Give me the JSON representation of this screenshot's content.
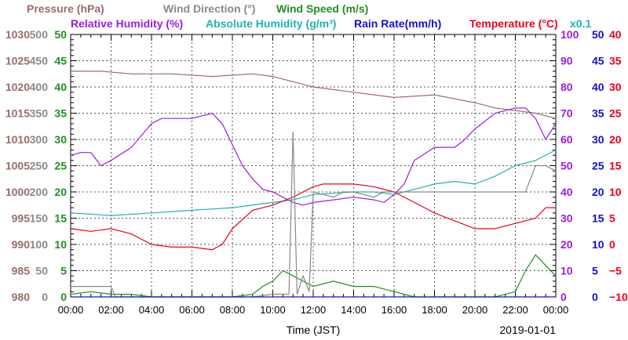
{
  "chart_data": {
    "type": "line",
    "xlabel": "Time (JST)",
    "date_label": "2019-01-01",
    "x_ticks": [
      "00:00",
      "02:00",
      "04:00",
      "06:00",
      "08:00",
      "10:00",
      "12:00",
      "14:00",
      "16:00",
      "18:00",
      "20:00",
      "22:00",
      "00:00"
    ],
    "x_range_hours": [
      0,
      24
    ],
    "grid": true,
    "legend": {
      "row1": [
        {
          "text": "Pressure (hPa)",
          "color": "#9c6b6b"
        },
        {
          "text": "Wind Direction (°)",
          "color": "#8a8a8a"
        },
        {
          "text": "Wind Speed (m/s)",
          "color": "#1f8f1f"
        }
      ],
      "row2": [
        {
          "text": "Relative Humidity (%)",
          "color": "#9a1ee0"
        },
        {
          "text": "Absolute Humidity (g/m³)",
          "color": "#1fb3b3"
        },
        {
          "text": "Rain Rate(mm/h)",
          "color": "#1111cc"
        },
        {
          "text": "Temperature (°C)",
          "color": "#ee0022"
        }
      ],
      "ah_multiplier": "x0.1"
    },
    "axes": {
      "pressure": {
        "min": 980,
        "max": 1030,
        "ticks": [
          "1030",
          "1025",
          "1020",
          "1015",
          "1010",
          "1005",
          "1000",
          "995",
          "990",
          "985",
          "980"
        ],
        "color": "#9c6b6b"
      },
      "wind_direction": {
        "min": 0,
        "max": 500,
        "ticks": [
          "500",
          "450",
          "400",
          "350",
          "300",
          "250",
          "200",
          "150",
          "100",
          "50",
          "0"
        ],
        "color": "#8a8a8a"
      },
      "wind_speed": {
        "min": 0,
        "max": 50,
        "ticks": [
          "50",
          "45",
          "40",
          "35",
          "30",
          "25",
          "20",
          "15",
          "10",
          "5",
          "0"
        ],
        "color": "#1f8f1f"
      },
      "humidity": {
        "min": 0,
        "max": 100,
        "ticks": [
          "100",
          "90",
          "80",
          "70",
          "60",
          "50",
          "40",
          "30",
          "20",
          "10",
          "0"
        ],
        "color": "#9a1ee0"
      },
      "rain_rate": {
        "min": 0,
        "max": 50,
        "ticks": [
          "50",
          "45",
          "40",
          "35",
          "30",
          "25",
          "20",
          "15",
          "10",
          "5",
          "0"
        ],
        "color": "#1111cc"
      },
      "temperature": {
        "min": -10,
        "max": 40,
        "ticks": [
          "40",
          "35",
          "30",
          "25",
          "20",
          "15",
          "10",
          "5",
          "0",
          "−5",
          "−10"
        ],
        "color": "#ee0022"
      }
    },
    "series": [
      {
        "name": "Pressure (hPa)",
        "axis": "pressure",
        "color": "#9c6b6b",
        "x": [
          0,
          1.5,
          3,
          5,
          7,
          9,
          10,
          12,
          14,
          16,
          18,
          20,
          21,
          22,
          23,
          24
        ],
        "y": [
          1023,
          1023,
          1022.5,
          1022.5,
          1022,
          1022.5,
          1022,
          1020,
          1019,
          1018,
          1018.5,
          1017,
          1016,
          1015.5,
          1015,
          1014
        ]
      },
      {
        "name": "Relative Humidity (%)",
        "axis": "humidity",
        "color": "#9a1ee0",
        "x": [
          0,
          0.5,
          1,
          1.5,
          2,
          3,
          4,
          4.5,
          5,
          6,
          7,
          7.5,
          8,
          8.5,
          9,
          9.5,
          10,
          10.5,
          11,
          11.5,
          12,
          13,
          14,
          15,
          15.5,
          16,
          16.5,
          17,
          18,
          19,
          19.5,
          20,
          21,
          22,
          22.5,
          23,
          23.5,
          24
        ],
        "y": [
          54,
          55,
          55,
          50,
          52,
          57,
          66,
          68,
          68,
          68,
          70,
          66,
          58,
          50,
          45,
          41,
          40,
          38,
          36,
          35,
          36,
          37,
          38,
          37,
          36,
          39,
          43,
          52,
          57,
          57,
          60,
          64,
          70,
          72,
          72,
          68,
          60,
          66
        ]
      },
      {
        "name": "Absolute Humidity (g/m³)",
        "axis": "humidity",
        "color": "#1fb3b3",
        "x": [
          0,
          2,
          4,
          6,
          8,
          10,
          11,
          12,
          14,
          15,
          16,
          17,
          18,
          19,
          20,
          21,
          22,
          23,
          23.5,
          24
        ],
        "y": [
          32,
          31,
          32,
          33,
          34,
          36,
          37,
          39,
          40,
          40,
          39,
          41,
          43,
          44,
          43,
          46,
          50,
          52,
          54,
          56
        ]
      },
      {
        "name": "Temperature (°C)",
        "axis": "temperature",
        "color": "#ee0022",
        "x": [
          0,
          1,
          2,
          3,
          4,
          5,
          6,
          7,
          7.5,
          8,
          9,
          10,
          11,
          12,
          12.5,
          13,
          14,
          15,
          16,
          17,
          18,
          19,
          20,
          21,
          22,
          23,
          23.5,
          24
        ],
        "y": [
          3,
          2.5,
          3,
          2,
          0,
          -0.5,
          -0.5,
          -1,
          0,
          3,
          6.5,
          7.5,
          9,
          11,
          11.5,
          11.5,
          11.5,
          11,
          10,
          8,
          6,
          4.5,
          3,
          3,
          4,
          5,
          7,
          7
        ]
      },
      {
        "name": "Wind Speed (m/s)",
        "axis": "wind_speed",
        "color": "#1f8f1f",
        "x": [
          0,
          1,
          2,
          3,
          4,
          5,
          6,
          7,
          8,
          9,
          9.5,
          10,
          10.5,
          11,
          11.5,
          12,
          13,
          14,
          15,
          16,
          17,
          18,
          19,
          20,
          21,
          22,
          22.5,
          23,
          23.5,
          24
        ],
        "y": [
          0.5,
          1,
          0.5,
          0.5,
          0,
          0,
          0,
          0,
          0,
          0.5,
          2,
          3,
          5,
          4,
          3,
          2,
          3,
          2,
          2,
          1,
          0,
          0,
          0,
          0,
          0,
          1,
          5,
          8,
          6,
          4
        ]
      },
      {
        "name": "Wind Direction (°)",
        "axis": "wind_direction",
        "color": "#8a8a8a",
        "x": [
          0,
          1,
          2,
          2.2,
          8,
          9,
          10,
          10.8,
          11,
          11.2,
          11.5,
          11.8,
          12,
          12.5,
          13,
          13.5,
          14,
          15,
          15.5,
          16,
          17,
          18,
          19,
          20,
          21,
          22,
          22.5,
          23,
          23.5,
          24
        ],
        "y": [
          20,
          20,
          20,
          0,
          0,
          0,
          5,
          5,
          315,
          5,
          40,
          10,
          200,
          195,
          190,
          200,
          200,
          190,
          200,
          200,
          200,
          200,
          200,
          200,
          200,
          200,
          200,
          250,
          250,
          240
        ]
      },
      {
        "name": "Rain Rate(mm/h)",
        "axis": "rain_rate",
        "color": "#1111cc",
        "x": [
          0,
          24
        ],
        "y": [
          0,
          0
        ]
      }
    ]
  }
}
